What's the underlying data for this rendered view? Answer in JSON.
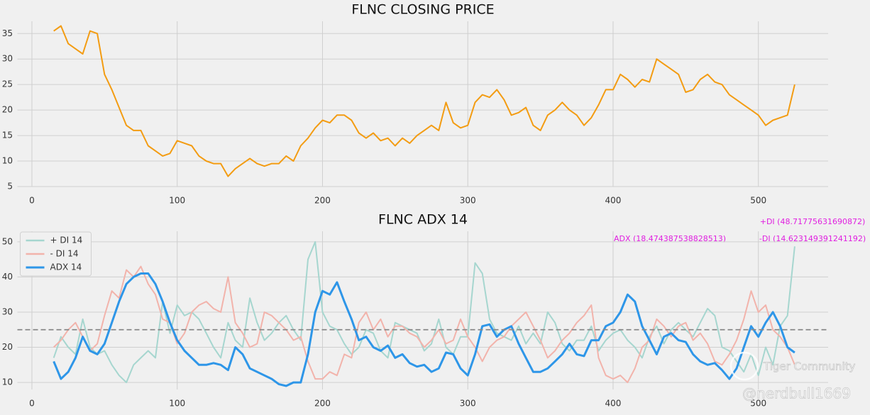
{
  "chart_data": [
    {
      "type": "line",
      "title": "FLNC CLOSING PRICE",
      "color": "#f39c12",
      "x": [
        15,
        20,
        25,
        30,
        35,
        40,
        45,
        50,
        55,
        60,
        65,
        70,
        75,
        80,
        85,
        90,
        95,
        100,
        105,
        110,
        115,
        120,
        125,
        130,
        135,
        140,
        145,
        150,
        155,
        160,
        165,
        170,
        175,
        180,
        185,
        190,
        195,
        200,
        205,
        210,
        215,
        220,
        225,
        230,
        235,
        240,
        245,
        250,
        255,
        260,
        265,
        270,
        275,
        280,
        285,
        290,
        295,
        300,
        305,
        310,
        315,
        320,
        325,
        330,
        335,
        340,
        345,
        350,
        355,
        360,
        365,
        370,
        375,
        380,
        385,
        390,
        395,
        400,
        405,
        410,
        415,
        420,
        425,
        430,
        435,
        440,
        445,
        450,
        455,
        460,
        465,
        470,
        475,
        480,
        485,
        490,
        495,
        500,
        505,
        510,
        515,
        520,
        525
      ],
      "values": [
        35.5,
        36.5,
        33,
        32,
        31,
        35.5,
        35,
        27,
        24,
        20.5,
        17,
        16,
        16,
        13,
        12,
        11,
        11.5,
        14,
        13.5,
        13,
        11,
        10,
        9.5,
        9.5,
        7,
        8.5,
        9.5,
        10.5,
        9.5,
        9,
        9.5,
        9.5,
        11,
        10,
        13,
        14.5,
        16.5,
        18,
        17.5,
        19,
        19,
        18,
        15.5,
        14.5,
        15.5,
        14,
        14.5,
        13,
        14.5,
        13.5,
        15,
        16,
        17,
        16,
        21.5,
        17.5,
        16.5,
        17,
        21.5,
        23,
        22.5,
        24,
        22,
        19,
        19.5,
        20.5,
        17,
        16,
        19,
        20,
        21.5,
        20,
        19,
        17,
        18.5,
        21,
        24,
        24,
        27,
        26,
        24.5,
        26,
        25.5,
        30,
        29,
        28,
        27,
        23.5,
        24,
        26,
        27,
        25.5,
        25,
        23,
        22,
        21,
        20,
        19,
        17,
        18,
        18.5,
        19,
        25
      ],
      "xlim": [
        -10,
        548
      ],
      "ylim": [
        5,
        37.4
      ],
      "xticks": [
        0,
        100,
        200,
        300,
        400,
        500
      ],
      "yticks": [
        5,
        10,
        15,
        20,
        25,
        30,
        35
      ],
      "grid": true
    },
    {
      "type": "line",
      "title": "FLNC ADX 14",
      "legend": "upper left",
      "x": [
        15,
        20,
        25,
        30,
        35,
        40,
        45,
        50,
        55,
        60,
        65,
        70,
        75,
        80,
        85,
        90,
        95,
        100,
        105,
        110,
        115,
        120,
        125,
        130,
        135,
        140,
        145,
        150,
        155,
        160,
        165,
        170,
        175,
        180,
        185,
        190,
        195,
        200,
        205,
        210,
        215,
        220,
        225,
        230,
        235,
        240,
        245,
        250,
        255,
        260,
        265,
        270,
        275,
        280,
        285,
        290,
        295,
        300,
        305,
        310,
        315,
        320,
        325,
        330,
        335,
        340,
        345,
        350,
        355,
        360,
        365,
        370,
        375,
        380,
        385,
        390,
        395,
        400,
        405,
        410,
        415,
        420,
        425,
        430,
        435,
        440,
        445,
        450,
        455,
        460,
        465,
        470,
        475,
        480,
        485,
        490,
        495,
        500,
        505,
        510,
        515,
        520,
        525
      ],
      "series": [
        {
          "name": "+ DI 14",
          "color": "#a6d6cf",
          "values": [
            17,
            23,
            20,
            18,
            28,
            20,
            18,
            19,
            15,
            12,
            10,
            15,
            17,
            19,
            17,
            33,
            24,
            32,
            29,
            30,
            28,
            24,
            20,
            17,
            27,
            22,
            20,
            34,
            27,
            22,
            24,
            27,
            29,
            25,
            22,
            45,
            50,
            30,
            26,
            25,
            21,
            18,
            20,
            25,
            24,
            19,
            17,
            27,
            26,
            25,
            24,
            19,
            21,
            28,
            20,
            18,
            23,
            23,
            44,
            41,
            28,
            24,
            23,
            22,
            26,
            21,
            24,
            21,
            30,
            27,
            21,
            19,
            22,
            22,
            26,
            19,
            22,
            24,
            25,
            22,
            20,
            17,
            23,
            26,
            21,
            25,
            27,
            25,
            23,
            27,
            31,
            29,
            20,
            19,
            16,
            13,
            18,
            12,
            20,
            15,
            26,
            29,
            48.7
          ]
        },
        {
          "name": "- DI 14",
          "color": "#f2b3ab",
          "values": [
            20,
            22,
            25,
            27,
            23,
            19,
            21,
            29,
            36,
            34,
            42,
            40,
            43,
            38,
            35,
            28,
            27,
            21,
            24,
            30,
            32,
            33,
            31,
            30,
            40,
            27,
            24,
            20,
            21,
            30,
            29,
            27,
            25,
            22,
            23,
            16,
            11,
            11,
            13,
            12,
            18,
            17,
            27,
            30,
            25,
            28,
            23,
            26,
            26,
            24,
            23,
            20,
            22,
            25,
            21,
            22,
            28,
            23,
            20,
            16,
            20,
            22,
            23,
            26,
            28,
            30,
            26,
            22,
            17,
            19,
            22,
            24,
            27,
            29,
            32,
            17,
            12,
            11,
            12,
            10,
            14,
            20,
            22,
            28,
            26,
            23,
            26,
            27,
            22,
            24,
            21,
            16,
            15,
            18,
            22,
            28,
            36,
            30,
            32,
            25,
            23,
            20,
            15
          ]
        },
        {
          "name": "ADX 14",
          "color": "#2e96e8",
          "width": 3,
          "values": [
            16,
            11,
            13,
            17,
            23,
            19,
            18,
            21,
            27,
            33,
            38,
            40,
            41,
            41,
            38,
            33,
            27,
            22,
            19,
            17,
            15,
            15,
            15.5,
            15,
            13.5,
            20,
            18,
            14,
            13,
            12,
            11,
            9.5,
            9,
            10,
            10,
            18,
            30,
            36,
            35,
            38.5,
            33,
            28,
            22,
            23,
            20,
            19,
            20.5,
            17,
            18,
            15.5,
            14.5,
            15,
            13,
            14,
            18.5,
            18,
            14,
            12,
            18,
            26,
            26.5,
            23,
            25,
            26,
            21,
            17,
            13,
            13,
            14,
            16,
            18,
            21,
            18,
            17.5,
            22,
            22,
            26,
            27,
            30,
            35,
            33,
            26,
            22,
            18,
            23,
            24,
            22,
            21.5,
            18,
            16,
            15,
            15.5,
            13.5,
            11,
            14,
            20,
            26,
            23,
            27,
            30,
            26,
            20,
            18.5
          ]
        }
      ],
      "hline": 25,
      "hline_color": "#888888",
      "annotations": [
        "+DI (48.71775631690872)",
        "ADX (18.474387538828513)",
        "-DI (14.623149391241192)"
      ],
      "xlim": [
        -10,
        548
      ],
      "ylim": [
        8,
        53
      ],
      "xticks": [
        0,
        100,
        200,
        300,
        400,
        500
      ],
      "yticks": [
        10,
        20,
        30,
        40,
        50
      ],
      "grid": true
    }
  ],
  "watermark": [
    "Tiger Community",
    "@nerdbull1669"
  ]
}
